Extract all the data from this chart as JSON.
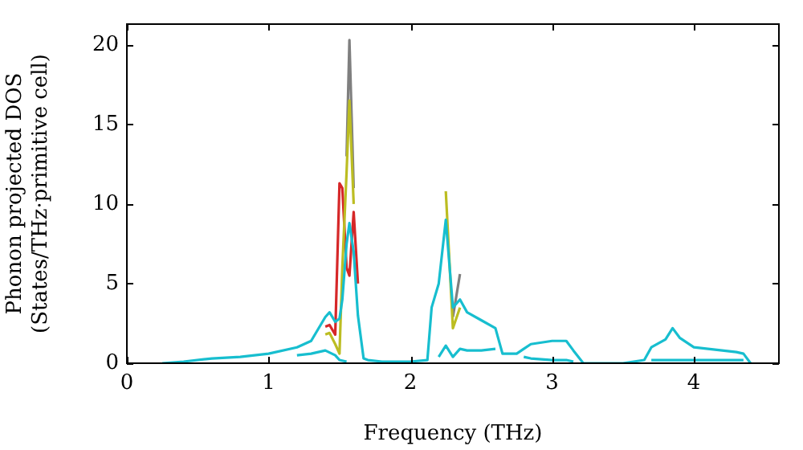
{
  "chart_data": {
    "type": "line",
    "xlabel": "Frequency (THz)",
    "ylabel": "Phonon projected DOS\n(States/THz·primitive cell)",
    "series": [
      {
        "color": "#d62728",
        "x": [
          1.4,
          1.43,
          1.47,
          1.5,
          1.52,
          1.55,
          1.57,
          1.6,
          1.63
        ],
        "values": [
          2.3,
          2.4,
          1.8,
          11.3,
          11,
          6,
          5.5,
          9.5,
          5
        ]
      },
      {
        "color": "#7f7f7f",
        "x": [
          1.55,
          1.57,
          1.6,
          2.0,
          2.3,
          2.35
        ],
        "values": [
          13,
          20.3,
          11,
          null,
          2.9,
          5.6
        ]
      },
      {
        "color": "#bcbd22",
        "x": [
          1.4,
          1.43,
          1.47,
          1.5,
          1.52,
          1.55,
          1.57,
          1.6,
          1.8,
          2.25,
          2.3,
          2.35
        ],
        "values": [
          1.8,
          1.9,
          1.2,
          0.6,
          6,
          12,
          16.5,
          10,
          null,
          10.8,
          2.2,
          3.5
        ]
      },
      {
        "color": "#17becf",
        "x": [
          1.2,
          1.3,
          1.4,
          1.47,
          1.5,
          1.55,
          1.8,
          2.2,
          2.25,
          2.3,
          2.35,
          2.4,
          2.5,
          2.6,
          2.7,
          2.8,
          2.85,
          3.0,
          3.1,
          3.15,
          3.4,
          3.7,
          3.8,
          3.85,
          3.9,
          4.0,
          4.3,
          4.35
        ],
        "values": [
          0.5,
          0.6,
          0.8,
          0.5,
          0.2,
          0.1,
          null,
          0.4,
          1.1,
          0.4,
          0.9,
          0.8,
          0.8,
          0.9,
          null,
          0.4,
          0.3,
          0.2,
          0.2,
          0.1,
          null,
          0.2,
          0.2,
          0.2,
          0.2,
          0.2,
          0.2,
          0.2
        ]
      },
      {
        "color": "#17becf",
        "x": [
          0.25,
          0.4,
          0.6,
          0.8,
          1.0,
          1.2,
          1.3,
          1.4,
          1.43,
          1.47,
          1.5,
          1.52,
          1.55,
          1.57,
          1.6,
          1.63,
          1.67,
          1.7,
          1.8,
          2.0,
          2.12,
          2.15,
          2.2,
          2.25,
          2.3,
          2.35,
          2.4,
          2.5,
          2.6,
          2.65,
          2.75,
          2.8,
          2.85,
          3.0,
          3.1,
          3.15,
          3.22,
          3.5,
          3.65,
          3.7,
          3.8,
          3.85,
          3.9,
          4.0,
          4.3,
          4.35,
          4.4
        ],
        "values": [
          0,
          0.1,
          0.3,
          0.4,
          0.6,
          1.0,
          1.4,
          2.9,
          3.2,
          2.6,
          2.8,
          4,
          7.5,
          8.8,
          7,
          3,
          0.3,
          0.2,
          0.1,
          0.1,
          0.2,
          3.5,
          5,
          9,
          3.5,
          4,
          3.2,
          2.7,
          2.2,
          0.6,
          0.6,
          0.9,
          1.2,
          1.4,
          1.4,
          0.8,
          0,
          0,
          0.2,
          1.0,
          1.5,
          2.2,
          1.6,
          1.0,
          0.7,
          0.6,
          0
        ]
      }
    ],
    "xlim": [
      0,
      4.6
    ],
    "xticks": [
      0,
      1,
      2,
      3,
      4
    ],
    "ylim": [
      0,
      21.3
    ],
    "yticks": [
      0,
      5,
      10,
      15,
      20
    ],
    "grid": false,
    "legend": false,
    "marker": "none",
    "line_style": "solid"
  }
}
